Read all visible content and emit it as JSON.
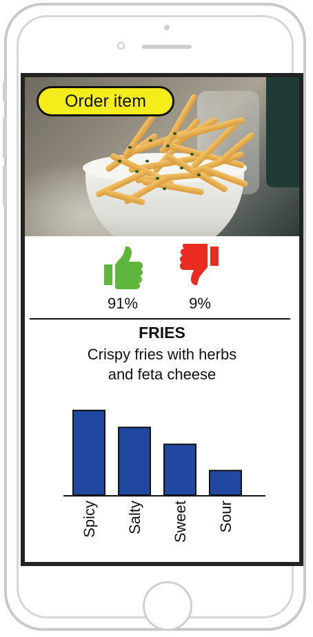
{
  "hero_image": {
    "subject": "bowl of fries with herbs and feta"
  },
  "order_button": {
    "label": "Order item"
  },
  "ratings": {
    "thumbs_up": {
      "icon": "thumbs-up-icon",
      "color": "#5fb63c",
      "percent": "91%"
    },
    "thumbs_down": {
      "icon": "thumbs-down-icon",
      "color": "#ea2b20",
      "percent": "9%"
    }
  },
  "item": {
    "title": "FRIES",
    "description_line1": "Crispy fries with herbs",
    "description_line2": "and feta cheese"
  },
  "chart_data": {
    "type": "bar",
    "categories": [
      "Spicy",
      "Salty",
      "Sweet",
      "Sour"
    ],
    "values": [
      100,
      80,
      60,
      29
    ],
    "ylim": [
      0,
      100
    ],
    "bar_color": "#2148a0",
    "grid": false,
    "title": "",
    "xlabel": "",
    "ylabel": ""
  },
  "colors": {
    "screen_border": "#222222",
    "button_fill": "#f5ec1b",
    "phone_frame": "#c9c9c9"
  }
}
